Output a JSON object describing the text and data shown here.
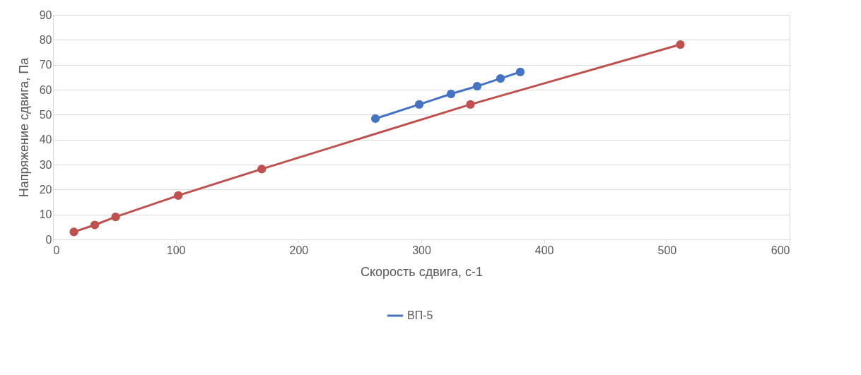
{
  "chart_data": {
    "type": "line",
    "xlabel": "Скорость сдвига, с-1",
    "ylabel": "Напряжение сдвига, Па",
    "xlim": [
      0,
      600
    ],
    "xticks": [
      0,
      100,
      200,
      300,
      400,
      500,
      600
    ],
    "ylim": [
      0,
      90
    ],
    "yticks": [
      0,
      10,
      20,
      30,
      40,
      50,
      60,
      70,
      80,
      90
    ],
    "grid": "y",
    "legend": "bottom",
    "marker": "circle",
    "series": [
      {
        "name": "ВП-5",
        "color": "#4472c4",
        "x": [
          262.6,
          298.3,
          324.2,
          345.5,
          364.5,
          380.6
        ],
        "values": [
          48.4,
          54.1,
          58.3,
          61.4,
          64.5,
          67.1
        ]
      },
      {
        "color": "#c0504d",
        "x": [
          17,
          34,
          51,
          102,
          170,
          340,
          511
        ],
        "values": [
          3.0,
          5.8,
          9.0,
          17.6,
          28.2,
          54.1,
          78.1
        ]
      }
    ]
  }
}
